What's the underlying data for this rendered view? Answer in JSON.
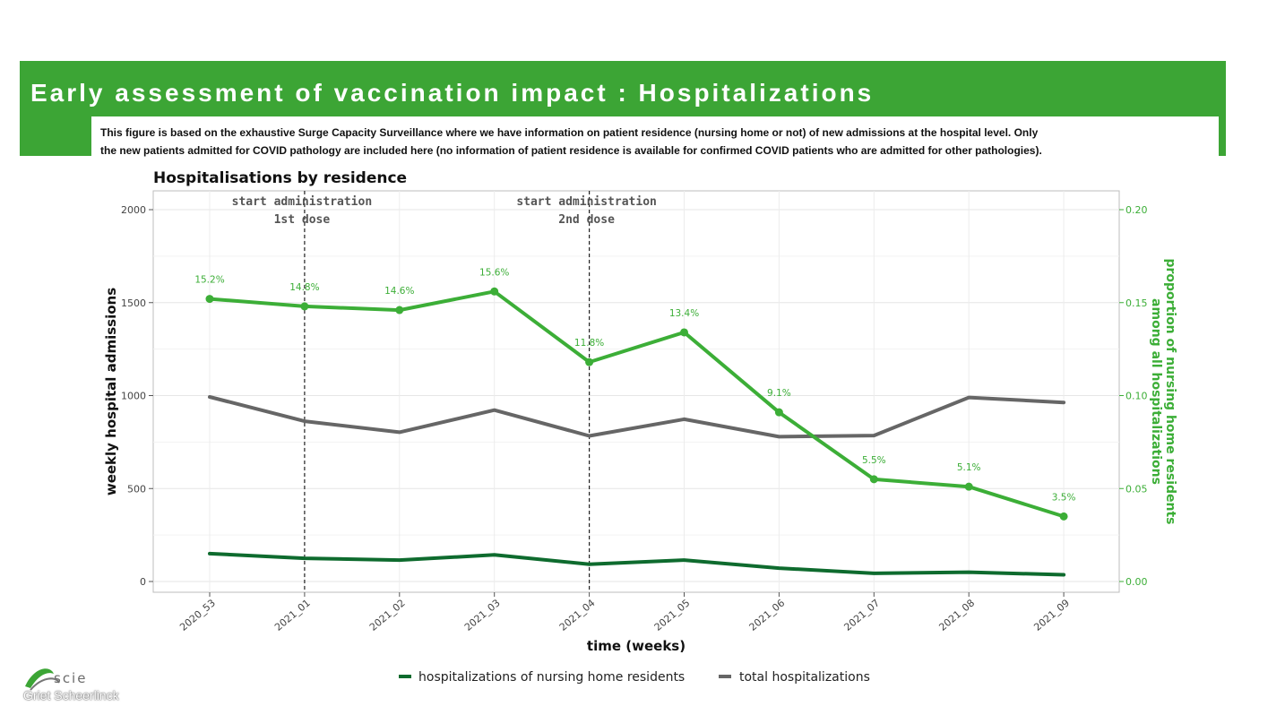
{
  "slide": {
    "title": "Early assessment of vaccination impact : Hospitalizations",
    "description_line1": "This figure is based on the exhaustive Surge Capacity Surveillance where we have information on patient residence (nursing home or not) of new admissions at the hospital level. Only",
    "description_line2": "the new patients admitted for COVID pathology are included here (no information of patient residence is available for confirmed COVID patients who are admitted for other pathologies).",
    "logo_text": "scie",
    "author": "Griet Scheerlinck"
  },
  "chart_data": {
    "type": "line",
    "title": "Hospitalisations by residence",
    "xlabel": "time (weeks)",
    "ylabel": "weekly hospital admissions",
    "y2label": "proportion of nursing home residents among all hospitalizations",
    "y2label_line1": "proportion of nursing home residents",
    "y2label_line2": "among all hospitalizations",
    "categories": [
      "2020_53",
      "2021_01",
      "2021_02",
      "2021_03",
      "2021_04",
      "2021_05",
      "2021_06",
      "2021_07",
      "2021_08",
      "2021_09"
    ],
    "ylim": [
      0,
      2000
    ],
    "yticks": [
      0,
      500,
      1000,
      1500,
      2000
    ],
    "y2lim": [
      0,
      0.2
    ],
    "y2ticks": [
      0.0,
      0.05,
      0.1,
      0.15,
      0.2
    ],
    "y2tick_labels": [
      "0.00",
      "0.05",
      "0.10",
      "0.15",
      "0.20"
    ],
    "grid": true,
    "legend_position": "bottom",
    "series": [
      {
        "name": "hospitalizations of nursing home residents",
        "axis": "left",
        "color": "#0e6b2e",
        "values": [
          150,
          125,
          115,
          143,
          93,
          115,
          72,
          44,
          50,
          36
        ]
      },
      {
        "name": "total hospitalizations",
        "axis": "left",
        "color": "#666666",
        "values": [
          993,
          862,
          803,
          922,
          783,
          873,
          779,
          785,
          990,
          963
        ]
      },
      {
        "axis": "right",
        "color": "#3cae37",
        "values": [
          0.152,
          0.148,
          0.146,
          0.156,
          0.118,
          0.134,
          0.091,
          0.055,
          0.051,
          0.035
        ],
        "data_labels": [
          "15.2%",
          "14.8%",
          "14.6%",
          "15.6%",
          "11.8%",
          "13.4%",
          "9.1%",
          "5.5%",
          "5.1%",
          "3.5%"
        ]
      }
    ],
    "annotations": [
      {
        "x": "2021_01",
        "line1": "start administration",
        "line2": "1st dose"
      },
      {
        "x": "2021_04",
        "line1": "start administration",
        "line2": "2nd dose"
      }
    ]
  }
}
